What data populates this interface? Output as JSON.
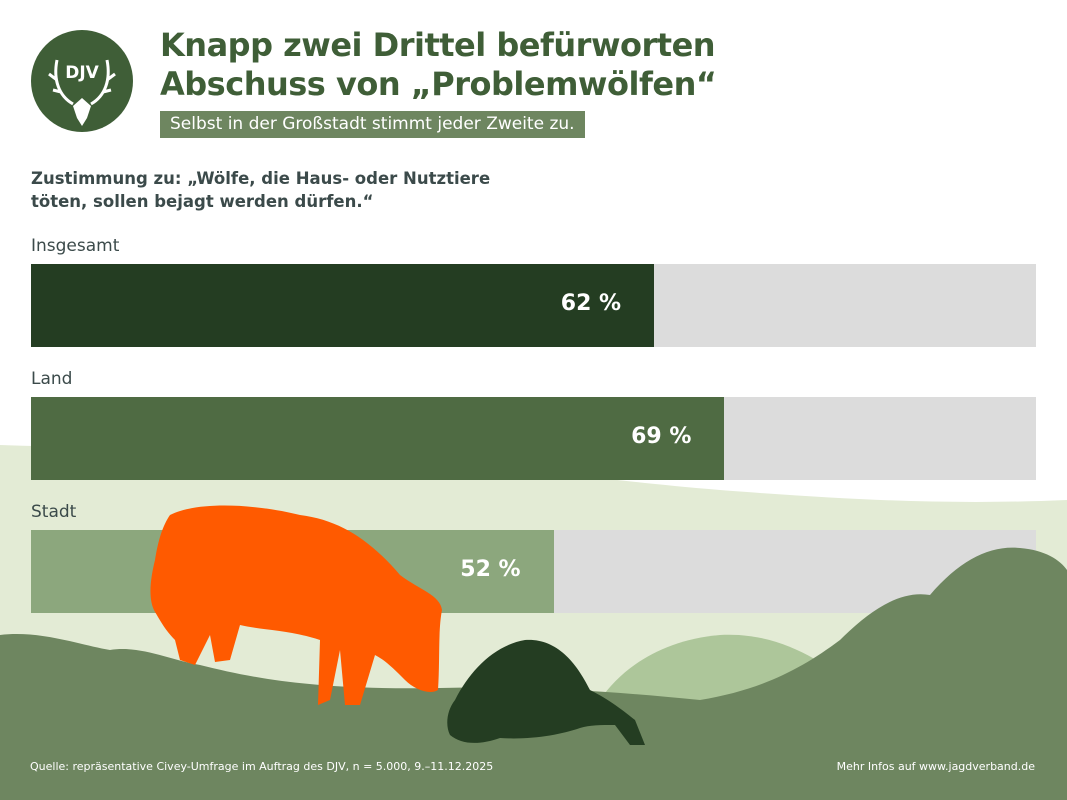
{
  "header": {
    "logo_text": "DJV",
    "title_line1": "Knapp zwei Drittel befürworten",
    "title_line2": "Abschuss von „Problemwölfen“",
    "subtitle": "Selbst in der Großstadt stimmt jeder Zweite zu."
  },
  "chart_data": {
    "type": "bar",
    "orientation": "horizontal",
    "title": "Zustimmung zu: „Wölfe, die Haus- oder Nutztiere töten, sollen bejagt werden dürfen.“",
    "title_line1": "Zustimmung zu: „Wölfe, die Haus- oder Nutztiere",
    "title_line2": "töten, sollen bejagt werden dürfen.“",
    "categories": [
      "Insgesamt",
      "Land",
      "Stadt"
    ],
    "values": [
      62,
      69,
      52
    ],
    "value_labels": [
      "62 %",
      "69 %",
      "52 %"
    ],
    "xlim": [
      0,
      100
    ],
    "unit": "%",
    "colors": [
      "#243d22",
      "#4f6b43",
      "#8ca77d"
    ],
    "track_color": "#dcdcdc",
    "grid": false
  },
  "footer": {
    "source": "Quelle: repräsentative Civey-Umfrage im Auftrag des DJV, n = 5.000, 9.–11.12.2025",
    "more_info": "Mehr Infos auf www.jagdverband.de"
  },
  "colors": {
    "brand_green": "#3f5e37",
    "ground": "#6e8660",
    "light_hill": "#e3ebd5",
    "wolf": "#ff5a00"
  }
}
